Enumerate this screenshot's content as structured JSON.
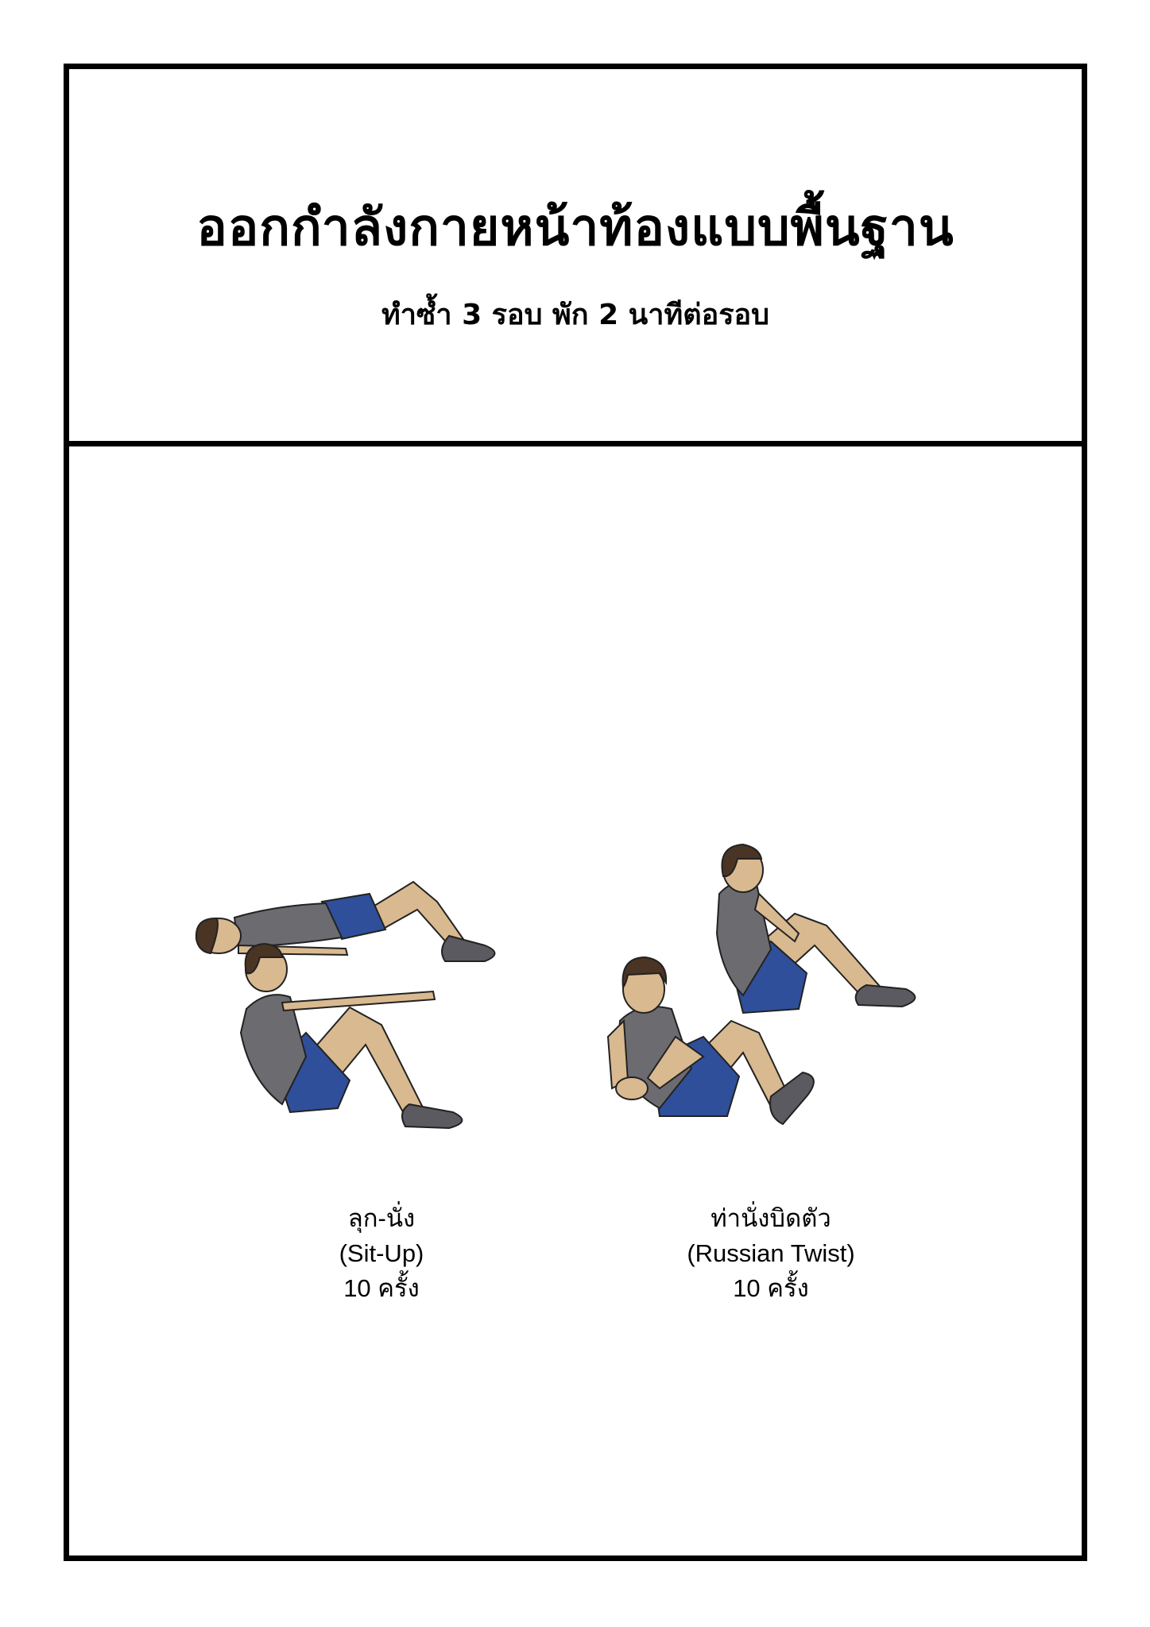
{
  "header": {
    "title": "ออกกำลังกายหน้าท้องแบบพื้นฐาน",
    "subtitle": "ทำซ้ำ 3 รอบ พัก 2 นาทีต่อรอบ"
  },
  "exercises": [
    {
      "name_th": "ลุก-นั่ง",
      "name_en": "(Sit-Up)",
      "reps": "10 ครั้ง",
      "illustration": "sit-up-illustration"
    },
    {
      "name_th": "ท่านั่งบิดตัว",
      "name_en": "(Russian Twist)",
      "reps": "10 ครั้ง",
      "illustration": "russian-twist-illustration"
    }
  ],
  "colors": {
    "border": "#000000",
    "skin": "#d9b98f",
    "shirt": "#6b6b70",
    "shorts": "#2f4f9a",
    "hair": "#4a3423",
    "shoes": "#5a5a60"
  }
}
